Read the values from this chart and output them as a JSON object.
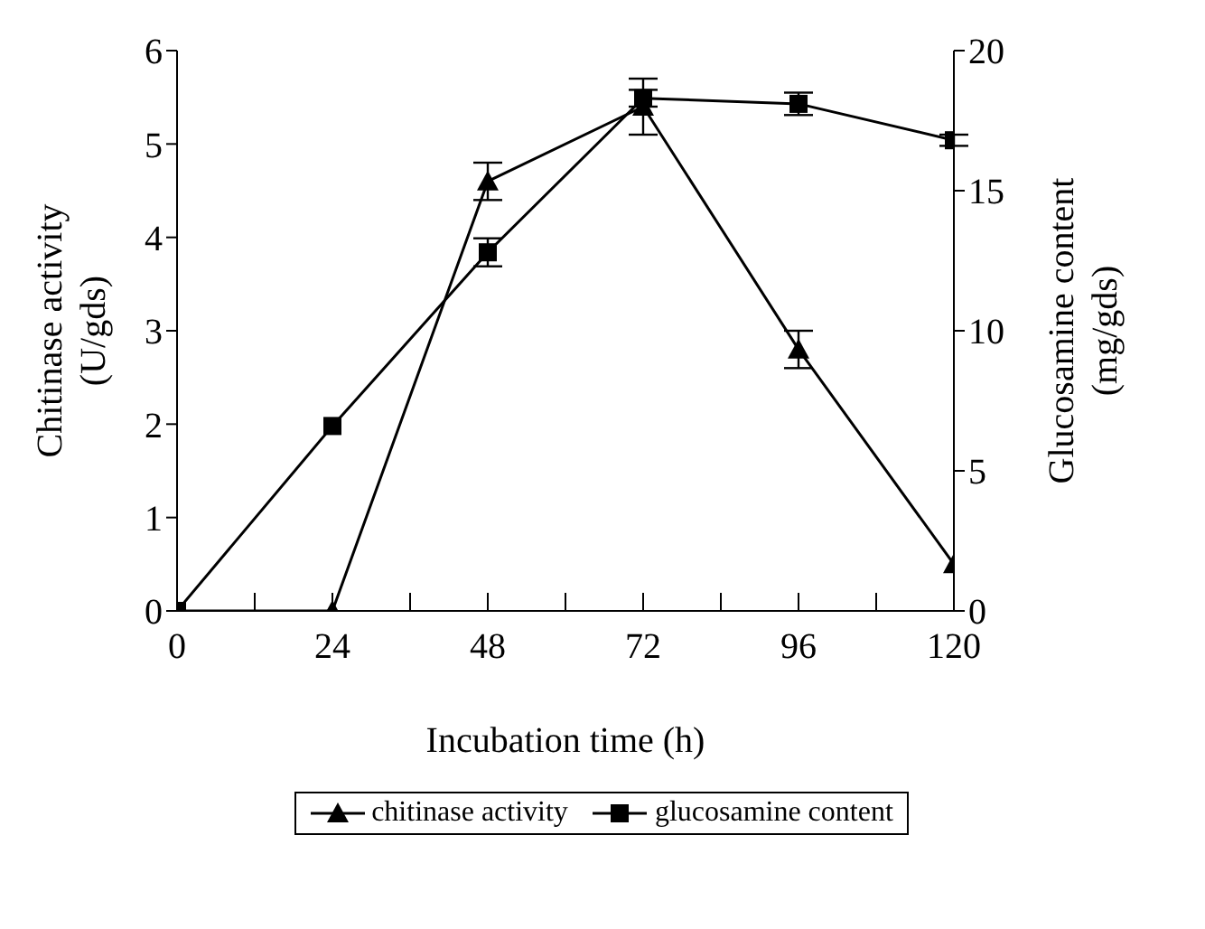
{
  "chart_data": {
    "type": "line",
    "xlabel": "Incubation time (h)",
    "ylabel": "Chitinase activity (U/gds)",
    "y2label": "Glucosamine content (mg/gds)",
    "x": [
      0,
      24,
      48,
      72,
      96,
      120
    ],
    "series": [
      {
        "name": "chitinase activity",
        "color": "#000000",
        "marker": "triangle",
        "values": [
          0,
          0,
          4.6,
          5.4,
          2.8,
          0.5
        ],
        "errors": [
          null,
          null,
          0.2,
          0.3,
          0.2,
          null
        ]
      },
      {
        "name": "glucosamine content",
        "color": "#000000",
        "marker": "square",
        "axis": "y2",
        "values": [
          0,
          6.6,
          12.8,
          18.3,
          18.1,
          16.8
        ],
        "errors": [
          null,
          null,
          0.5,
          0.3,
          0.4,
          0.2
        ]
      }
    ],
    "xlim": [
      0,
      120
    ],
    "xticks": [
      0,
      {
        "value": 12,
        "label": null
      },
      24,
      {
        "value": 36,
        "label": null
      },
      48,
      {
        "value": 60,
        "label": null
      },
      72,
      {
        "value": 84,
        "label": null
      },
      96,
      {
        "value": 108,
        "label": null
      },
      120
    ],
    "ylim": [
      0,
      6
    ],
    "yticks": [
      0,
      1,
      2,
      3,
      4,
      5,
      6
    ],
    "y2lim": [
      0,
      20
    ],
    "y2ticks": [
      0,
      5,
      10,
      15,
      20
    ],
    "grid": false,
    "legend": "bottom",
    "line_style": "solid"
  }
}
